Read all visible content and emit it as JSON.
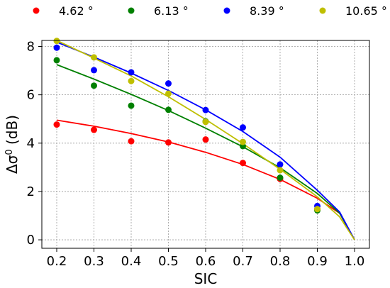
{
  "chart_data": {
    "type": "scatter",
    "xlabel": "SIC",
    "ylabel_base": "Δσ",
    "ylabel_sup": "0",
    "ylabel_unit": " (dB)",
    "xlim": [
      0.16,
      1.04
    ],
    "ylim": [
      -0.35,
      8.25
    ],
    "xticks": [
      0.2,
      0.3,
      0.4,
      0.5,
      0.6,
      0.7,
      0.8,
      0.9,
      1.0
    ],
    "xtick_labels": [
      "0.2",
      "0.3",
      "0.4",
      "0.5",
      "0.6",
      "0.7",
      "0.8",
      "0.9",
      "1.0"
    ],
    "yticks": [
      0,
      2,
      4,
      6,
      8
    ],
    "ytick_labels": [
      "0",
      "2",
      "4",
      "6",
      "8"
    ],
    "grid": true,
    "legend_position": "top",
    "series": [
      {
        "name": "4.62 °",
        "color": "#ff0000",
        "points": [
          [
            0.2,
            4.77
          ],
          [
            0.3,
            4.55
          ],
          [
            0.4,
            4.08
          ],
          [
            0.5,
            4.03
          ],
          [
            0.6,
            4.15
          ],
          [
            0.7,
            3.18
          ],
          [
            0.8,
            2.52
          ],
          [
            0.9,
            1.27
          ]
        ],
        "fit": [
          [
            0.2,
            4.95
          ],
          [
            0.3,
            4.7
          ],
          [
            0.4,
            4.4
          ],
          [
            0.5,
            4.05
          ],
          [
            0.6,
            3.62
          ],
          [
            0.7,
            3.12
          ],
          [
            0.8,
            2.5
          ],
          [
            0.9,
            1.72
          ],
          [
            0.96,
            1.1
          ],
          [
            1.0,
            0.0
          ]
        ]
      },
      {
        "name": "6.13 °",
        "color": "#008000",
        "points": [
          [
            0.2,
            7.43
          ],
          [
            0.3,
            6.38
          ],
          [
            0.4,
            5.55
          ],
          [
            0.5,
            5.38
          ],
          [
            0.6,
            4.9
          ],
          [
            0.7,
            3.88
          ],
          [
            0.8,
            2.57
          ],
          [
            0.9,
            1.22
          ]
        ],
        "fit": [
          [
            0.2,
            7.25
          ],
          [
            0.3,
            6.65
          ],
          [
            0.4,
            6.02
          ],
          [
            0.5,
            5.35
          ],
          [
            0.6,
            4.62
          ],
          [
            0.7,
            3.85
          ],
          [
            0.8,
            2.98
          ],
          [
            0.9,
            1.92
          ],
          [
            0.96,
            1.1
          ],
          [
            1.0,
            0.0
          ]
        ]
      },
      {
        "name": "8.39 °",
        "color": "#0000ff",
        "points": [
          [
            0.2,
            7.95
          ],
          [
            0.3,
            7.02
          ],
          [
            0.4,
            6.93
          ],
          [
            0.5,
            6.47
          ],
          [
            0.6,
            5.37
          ],
          [
            0.7,
            4.65
          ],
          [
            0.8,
            3.12
          ],
          [
            0.9,
            1.4
          ]
        ],
        "fit": [
          [
            0.2,
            8.18
          ],
          [
            0.3,
            7.56
          ],
          [
            0.4,
            6.9
          ],
          [
            0.5,
            6.18
          ],
          [
            0.6,
            5.38
          ],
          [
            0.7,
            4.48
          ],
          [
            0.8,
            3.42
          ],
          [
            0.9,
            2.05
          ],
          [
            0.96,
            1.15
          ],
          [
            1.0,
            0.0
          ]
        ]
      },
      {
        "name": "10.65 °",
        "color": "#bfbf00",
        "points": [
          [
            0.2,
            8.23
          ],
          [
            0.3,
            7.55
          ],
          [
            0.4,
            6.57
          ],
          [
            0.5,
            6.05
          ],
          [
            0.6,
            4.88
          ],
          [
            0.7,
            4.05
          ],
          [
            0.8,
            2.88
          ],
          [
            0.9,
            1.27
          ]
        ],
        "fit": [
          [
            0.2,
            8.25
          ],
          [
            0.3,
            7.52
          ],
          [
            0.4,
            6.78
          ],
          [
            0.5,
            5.92
          ],
          [
            0.6,
            4.98
          ],
          [
            0.7,
            3.98
          ],
          [
            0.8,
            2.92
          ],
          [
            0.9,
            1.78
          ],
          [
            0.96,
            0.95
          ],
          [
            1.0,
            0.0
          ]
        ]
      }
    ]
  }
}
